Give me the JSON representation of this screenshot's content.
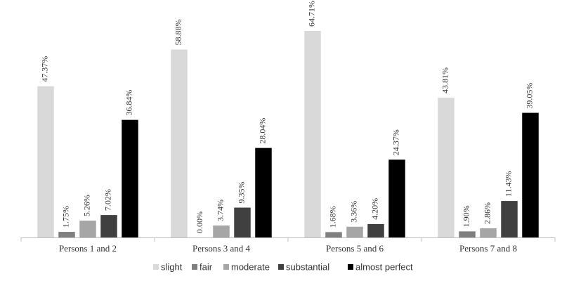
{
  "chart_data": {
    "type": "bar",
    "title": "",
    "xlabel": "",
    "ylabel": "",
    "ylim": [
      0,
      70
    ],
    "grid": false,
    "legend_position": "bottom",
    "value_format": "percent-2dp",
    "categories": [
      "Persons 1 and 2",
      "Persons 3 and 4",
      "Persons 5 and 6",
      "Persons 7 and 8"
    ],
    "series": [
      {
        "name": "slight",
        "color": "#d9d9d9",
        "values": [
          47.37,
          58.88,
          64.71,
          43.81
        ],
        "labels": [
          "47.37%",
          "58.88%",
          "64.71%",
          "43.81%"
        ]
      },
      {
        "name": "fair",
        "color": "#7f7f7f",
        "values": [
          1.75,
          0.0,
          1.68,
          1.9
        ],
        "labels": [
          "1.75%",
          "0.00%",
          "1.68%",
          "1.90%"
        ]
      },
      {
        "name": "moderate",
        "color": "#a6a6a6",
        "values": [
          5.26,
          3.74,
          3.36,
          2.86
        ],
        "labels": [
          "5.26%",
          "3.74%",
          "3.36%",
          "2.86%"
        ]
      },
      {
        "name": "substantial",
        "color": "#404040",
        "values": [
          7.02,
          9.35,
          4.2,
          11.43
        ],
        "labels": [
          "7.02%",
          "9.35%",
          "4.20%",
          "11.43%"
        ]
      },
      {
        "name": "almost perfect",
        "color": "#000000",
        "values": [
          36.84,
          28.04,
          24.37,
          39.05
        ],
        "labels": [
          "36.84%",
          "28.04%",
          "24.37%",
          "39.05%"
        ]
      }
    ]
  }
}
